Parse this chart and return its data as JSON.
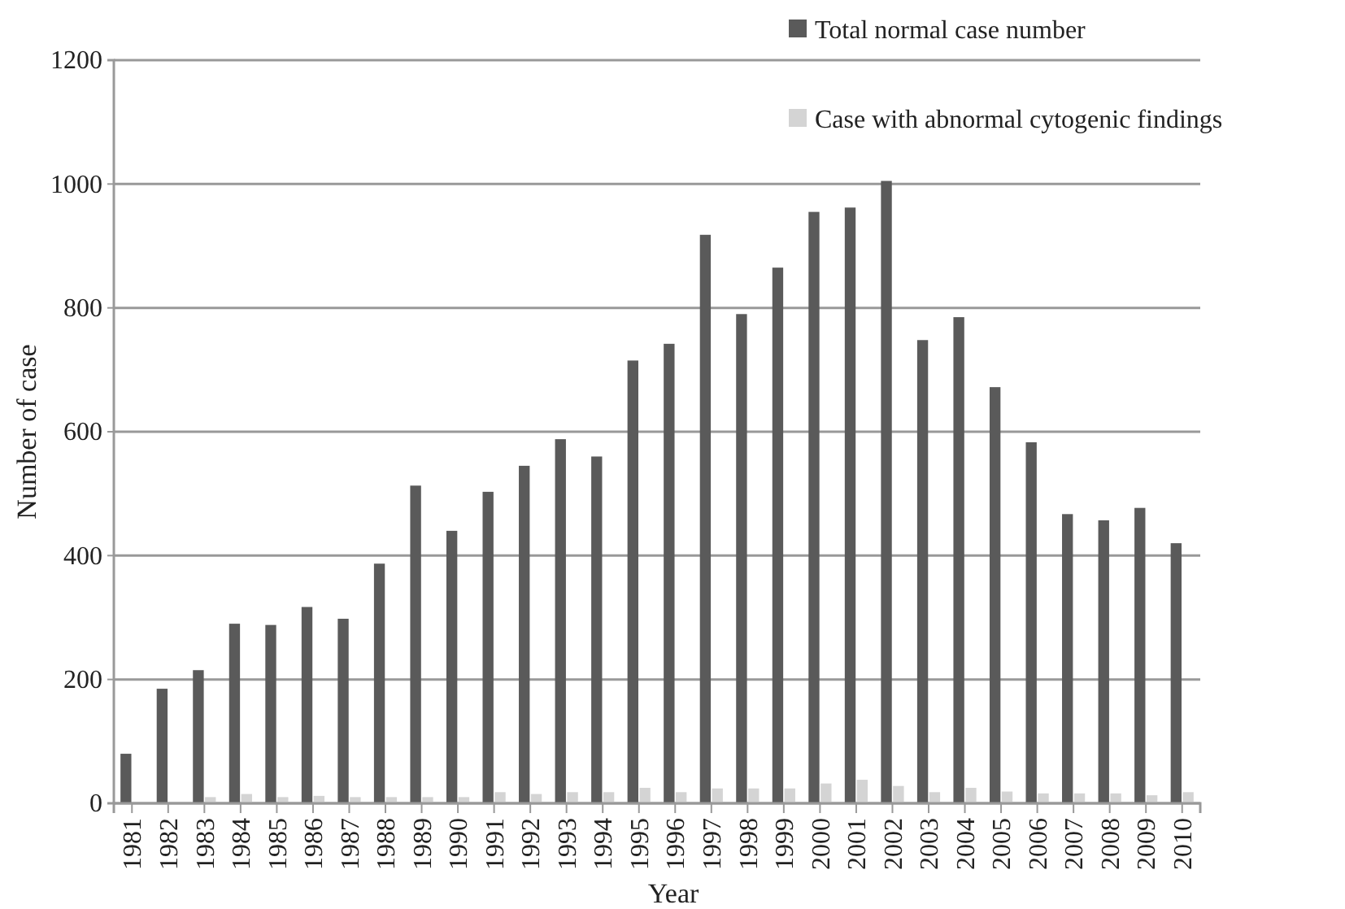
{
  "chart_data": {
    "type": "bar",
    "xlabel": "Year",
    "ylabel": "Number of case",
    "categories": [
      "1981",
      "1982",
      "1983",
      "1984",
      "1985",
      "1986",
      "1987",
      "1988",
      "1989",
      "1990",
      "1991",
      "1992",
      "1993",
      "1994",
      "1995",
      "1996",
      "1997",
      "1998",
      "1999",
      "2000",
      "2001",
      "2002",
      "2003",
      "2004",
      "2005",
      "2006",
      "2007",
      "2008",
      "2009",
      "2010"
    ],
    "series": [
      {
        "name": "Total normal case number",
        "color": "#5a5a5a",
        "values": [
          80,
          185,
          215,
          290,
          288,
          317,
          298,
          387,
          513,
          440,
          503,
          545,
          588,
          560,
          715,
          742,
          918,
          790,
          865,
          955,
          962,
          1005,
          748,
          785,
          672,
          583,
          467,
          457,
          477,
          420
        ]
      },
      {
        "name": "Case with abnormal cytogenic findings",
        "color": "#d4d4d4",
        "values": [
          0,
          0,
          10,
          15,
          10,
          12,
          10,
          10,
          10,
          10,
          18,
          15,
          18,
          18,
          25,
          18,
          24,
          24,
          24,
          32,
          38,
          28,
          18,
          25,
          19,
          16,
          16,
          16,
          13,
          18
        ]
      }
    ],
    "ylim": [
      0,
      1200
    ],
    "yticks": [
      0,
      200,
      400,
      600,
      800,
      1000,
      1200
    ],
    "grid": "y",
    "legend": "top right"
  }
}
